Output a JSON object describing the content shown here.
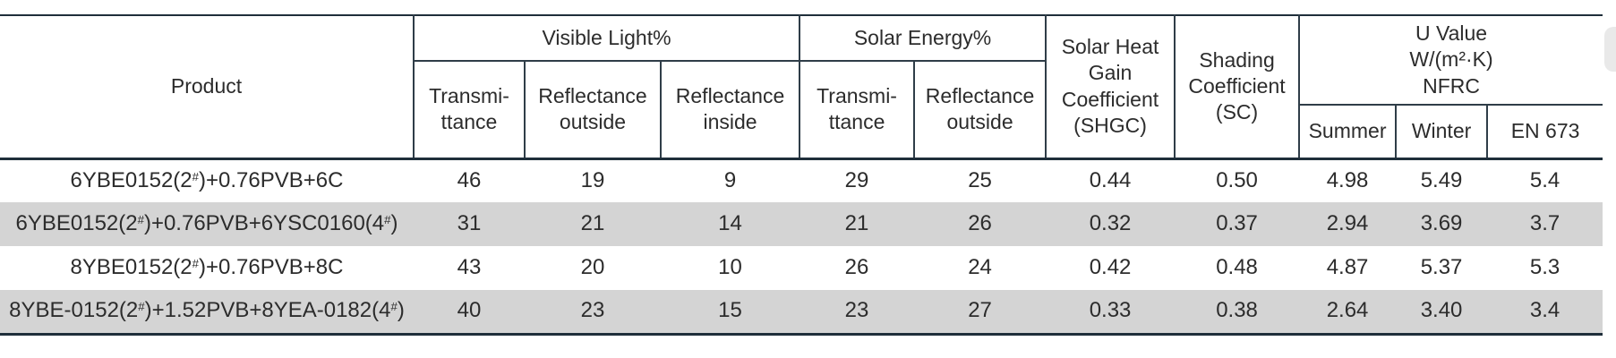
{
  "colors": {
    "row_shade": "#d4d4d4",
    "border_dark": "#1f2e3a",
    "border_thin": "#2f3d48",
    "text": "#2c2c2c",
    "corner_shape": "#e9e9e9"
  },
  "table": {
    "headers": {
      "product": "Product",
      "visible_light_group": "Visible Light%",
      "solar_energy_group": "Solar Energy%",
      "shgc": "Solar Heat\nGain\nCoefficient\n(SHGC)",
      "shading_coefficient": "Shading\nCoefficient\n(SC)",
      "u_value_group": "U Value\nW/(m²·K)\nNFRC",
      "vl_transmittance": "Transmi-\nttance",
      "vl_reflectance_outside": "Reflectance\noutside",
      "vl_reflectance_inside": "Reflectance\ninside",
      "se_transmittance": "Transmi-\nttance",
      "se_reflectance_outside": "Reflectance\noutside",
      "u_summer": "Summer",
      "u_winter": "Winter",
      "u_en673": "EN 673"
    },
    "rows": [
      {
        "product": "6YBE0152(2#)+0.76PVB+6C",
        "values": [
          "46",
          "19",
          "9",
          "29",
          "25",
          "0.44",
          "0.50",
          "4.98",
          "5.49",
          "5.4"
        ],
        "shaded": false
      },
      {
        "product": "6YBE0152(2#)+0.76PVB+6YSC0160(4#)",
        "values": [
          "31",
          "21",
          "14",
          "21",
          "26",
          "0.32",
          "0.37",
          "2.94",
          "3.69",
          "3.7"
        ],
        "shaded": true
      },
      {
        "product": "8YBE0152(2#)+0.76PVB+8C",
        "values": [
          "43",
          "20",
          "10",
          "26",
          "24",
          "0.42",
          "0.48",
          "4.87",
          "5.37",
          "5.3"
        ],
        "shaded": false
      },
      {
        "product": "8YBE-0152(2#)+1.52PVB+8YEA-0182(4#)",
        "values": [
          "40",
          "23",
          "15",
          "23",
          "27",
          "0.33",
          "0.38",
          "2.64",
          "3.40",
          "3.4"
        ],
        "shaded": true
      }
    ]
  }
}
